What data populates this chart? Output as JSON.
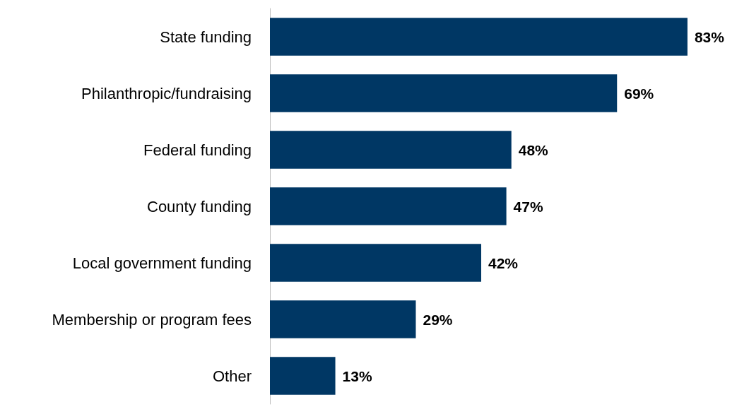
{
  "chart_data": {
    "type": "bar",
    "orientation": "horizontal",
    "categories": [
      "State funding",
      "Philanthropic/fundraising",
      "Federal funding",
      "County funding",
      "Local government funding",
      "Membership or program fees",
      "Other"
    ],
    "values": [
      83,
      69,
      48,
      47,
      42,
      29,
      13
    ],
    "value_labels": [
      "83%",
      "69%",
      "48%",
      "47%",
      "42%",
      "29%",
      "13%"
    ],
    "color": "#003764"
  }
}
